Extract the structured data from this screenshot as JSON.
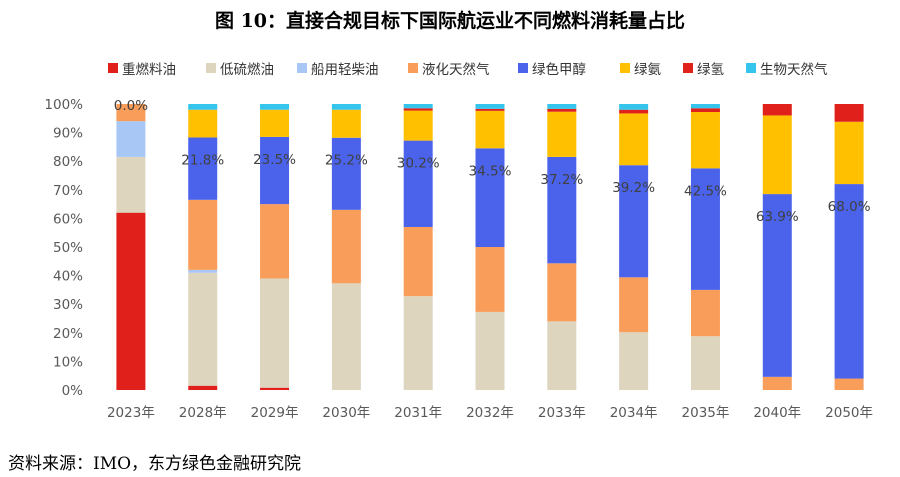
{
  "title": "图 10：直接合规目标下国际航运业不同燃料消耗量占比",
  "source": "资料来源：IMO，东方绿色金融研究院",
  "chart_data": {
    "type": "bar",
    "stacked": true,
    "categories": [
      "2023年",
      "2028年",
      "2029年",
      "2030年",
      "2031年",
      "2032年",
      "2033年",
      "2034年",
      "2035年",
      "2040年",
      "2050年"
    ],
    "ylim": [
      0,
      100
    ],
    "yticks": [
      "0%",
      "10%",
      "20%",
      "30%",
      "40%",
      "50%",
      "60%",
      "70%",
      "80%",
      "90%",
      "100%"
    ],
    "legend_position": "top",
    "grid": false,
    "series": [
      {
        "name": "重燃料油",
        "color": "#e0201b",
        "values": [
          62,
          1.5,
          0.8,
          0,
          0,
          0,
          0,
          0,
          0,
          0,
          0
        ]
      },
      {
        "name": "低硫燃油",
        "color": "#ded5bf",
        "values": [
          19.5,
          39.5,
          38.2,
          37.3,
          32.8,
          27.3,
          24,
          20.2,
          18.8,
          0,
          0
        ]
      },
      {
        "name": "船用轻柴油",
        "color": "#a8c7f5",
        "values": [
          12.5,
          1,
          0,
          0,
          0,
          0,
          0,
          0,
          0,
          0,
          0
        ]
      },
      {
        "name": "液化天然气",
        "color": "#f99d5a",
        "values": [
          6,
          24.5,
          26,
          25.7,
          24.2,
          22.7,
          20.3,
          19.2,
          16.2,
          4.6,
          4
        ]
      },
      {
        "name": "绿色甲醇",
        "color": "#4b63eb",
        "values": [
          0,
          21.8,
          23.5,
          25.2,
          30.2,
          34.5,
          37.2,
          39.2,
          42.5,
          63.9,
          68.0
        ]
      },
      {
        "name": "绿氨",
        "color": "#ffc000",
        "values": [
          0,
          9.7,
          9.5,
          9.8,
          10.5,
          13.1,
          15.8,
          18.1,
          19.7,
          27.5,
          21.8
        ]
      },
      {
        "name": "绿氢",
        "color": "#e0201b",
        "values": [
          0,
          0,
          0,
          0,
          0.8,
          0.7,
          1,
          1.3,
          1.3,
          4,
          6.2
        ]
      },
      {
        "name": "生物天然气",
        "color": "#35c5ec",
        "values": [
          0,
          2,
          2,
          2,
          1.5,
          1.7,
          1.7,
          2,
          1.5,
          0,
          0
        ]
      }
    ],
    "data_labels": [
      "0.0%",
      "21.8%",
      "23.5%",
      "25.2%",
      "30.2%",
      "34.5%",
      "37.2%",
      "39.2%",
      "42.5%",
      "63.9%",
      "68.0%"
    ]
  }
}
